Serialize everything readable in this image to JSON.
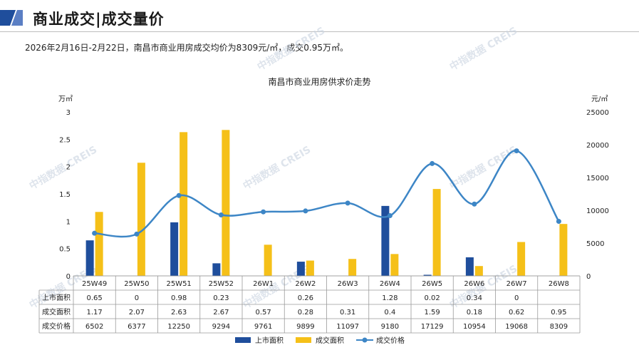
{
  "header": {
    "title": "商业成交|成交量价",
    "accent_color": "#1f4e9c",
    "accent_color_light": "#5b7fc4"
  },
  "summary": "2026年2月16日-2月22日，南昌市商业用房成交均价为8309元/㎡，成交0.95万㎡。",
  "watermark": "中指数据 CREIS",
  "chart_data": {
    "type": "bar",
    "title": "南昌市商业用房供求价走势",
    "ylabel_left": "万㎡",
    "ylabel_right": "元/㎡",
    "categories": [
      "25W49",
      "25W50",
      "25W51",
      "25W52",
      "26W1",
      "26W2",
      "26W3",
      "26W4",
      "26W5",
      "26W6",
      "26W7",
      "26W8"
    ],
    "ylim_left": [
      0,
      3
    ],
    "yticks_left": [
      "0",
      "0.5",
      "1",
      "1.5",
      "2",
      "2.5",
      "3"
    ],
    "ylim_right": [
      0,
      25000
    ],
    "yticks_right": [
      "0",
      "5000",
      "10000",
      "15000",
      "20000",
      "25000"
    ],
    "series": [
      {
        "name": "上市面积",
        "type": "bar",
        "color": "#1f4e9c",
        "values": [
          0.65,
          0,
          0.98,
          0.23,
          null,
          0.26,
          null,
          1.28,
          0.02,
          0.34,
          0,
          null
        ],
        "labels": [
          "0.65",
          "0",
          "0.98",
          "0.23",
          "",
          "0.26",
          "",
          "1.28",
          "0.02",
          "0.34",
          "0",
          ""
        ]
      },
      {
        "name": "成交面积",
        "type": "bar",
        "color": "#f5c018",
        "values": [
          1.17,
          2.07,
          2.63,
          2.67,
          0.57,
          0.28,
          0.31,
          0.4,
          1.59,
          0.18,
          0.62,
          0.95
        ],
        "labels": [
          "1.17",
          "2.07",
          "2.63",
          "2.67",
          "0.57",
          "0.28",
          "0.31",
          "0.4",
          "1.59",
          "0.18",
          "0.62",
          "0.95"
        ]
      },
      {
        "name": "成交价格",
        "type": "line",
        "axis": "right",
        "color": "#3d86c6",
        "values": [
          6502,
          6377,
          12250,
          9294,
          9761,
          9899,
          11097,
          9180,
          17129,
          10954,
          19068,
          8309
        ],
        "labels": [
          "6502",
          "6377",
          "12250",
          "9294",
          "9761",
          "9899",
          "11097",
          "9180",
          "17129",
          "10954",
          "19068",
          "8309"
        ]
      }
    ],
    "legend_position": "bottom",
    "grid": false
  }
}
